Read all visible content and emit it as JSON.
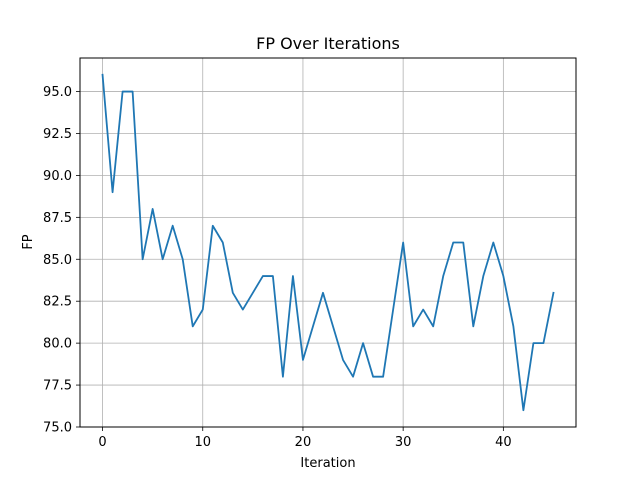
{
  "chart_data": {
    "type": "line",
    "title": "FP Over Iterations",
    "xlabel": "Iteration",
    "ylabel": "FP",
    "xlim": [
      -2.25,
      47.25
    ],
    "ylim": [
      75.0,
      97.0
    ],
    "xticks": [
      0,
      10,
      20,
      30,
      40
    ],
    "yticks": [
      75.0,
      77.5,
      80.0,
      82.5,
      85.0,
      87.5,
      90.0,
      92.5,
      95.0
    ],
    "ytick_labels": [
      "75.0",
      "77.5",
      "80.0",
      "82.5",
      "85.0",
      "87.5",
      "90.0",
      "92.5",
      "95.0"
    ],
    "grid": true,
    "series": [
      {
        "color": "#1f77b4",
        "x": [
          0,
          1,
          2,
          3,
          4,
          5,
          6,
          7,
          8,
          9,
          10,
          11,
          12,
          13,
          14,
          15,
          16,
          17,
          18,
          19,
          20,
          21,
          22,
          23,
          24,
          25,
          26,
          27,
          28,
          29,
          30,
          31,
          32,
          33,
          34,
          35,
          36,
          37,
          38,
          39,
          40,
          41,
          42,
          43,
          44,
          45
        ],
        "values": [
          96,
          89,
          95,
          95,
          85,
          88,
          85,
          87,
          85,
          81,
          82,
          87,
          86,
          83,
          82,
          83,
          84,
          84,
          78,
          84,
          79,
          81,
          83,
          81,
          79,
          78,
          80,
          78,
          78,
          82,
          86,
          81,
          82,
          81,
          84,
          86,
          86,
          81,
          84,
          86,
          84,
          81,
          76,
          80,
          80,
          83
        ]
      }
    ]
  }
}
